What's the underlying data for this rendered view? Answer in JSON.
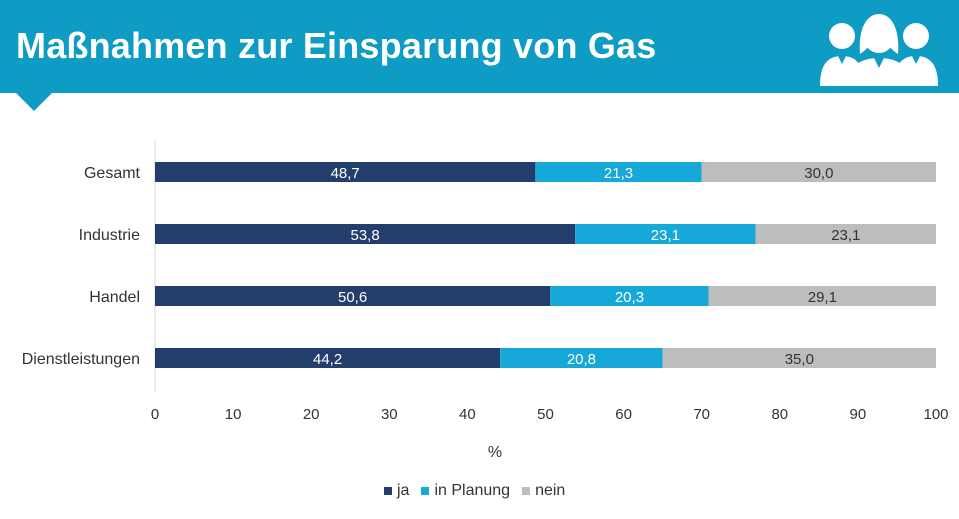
{
  "header": {
    "title": "Maßnahmen zur Einsparung von Gas",
    "icon": "people-group-icon",
    "background_color": "#0e9bc4"
  },
  "chart_data": {
    "type": "bar",
    "orientation": "horizontal",
    "stacked": true,
    "title": "",
    "xlabel": "%",
    "ylabel": "",
    "xlim": [
      0,
      100
    ],
    "x_ticks": [
      "0",
      "10",
      "20",
      "30",
      "40",
      "50",
      "60",
      "70",
      "80",
      "90",
      "100"
    ],
    "categories": [
      "Gesamt",
      "Industrie",
      "Handel",
      "Dienstleistungen"
    ],
    "series": [
      {
        "name": "ja",
        "color": "#233e6c",
        "values": [
          48.7,
          53.8,
          50.6,
          44.2
        ],
        "labels": [
          "48,7",
          "53,8",
          "50,6",
          "44,2"
        ]
      },
      {
        "name": "in Planung",
        "color": "#16a8d8",
        "values": [
          21.3,
          23.1,
          20.3,
          20.8
        ],
        "labels": [
          "21,3",
          "23,1",
          "20,3",
          "20,8"
        ]
      },
      {
        "name": "nein",
        "color": "#bdbdbd",
        "values": [
          30.0,
          23.1,
          29.1,
          35.0
        ],
        "labels": [
          "30,0",
          "23,1",
          "29,1",
          "35,0"
        ]
      }
    ],
    "grid": false,
    "legend_position": "bottom"
  }
}
